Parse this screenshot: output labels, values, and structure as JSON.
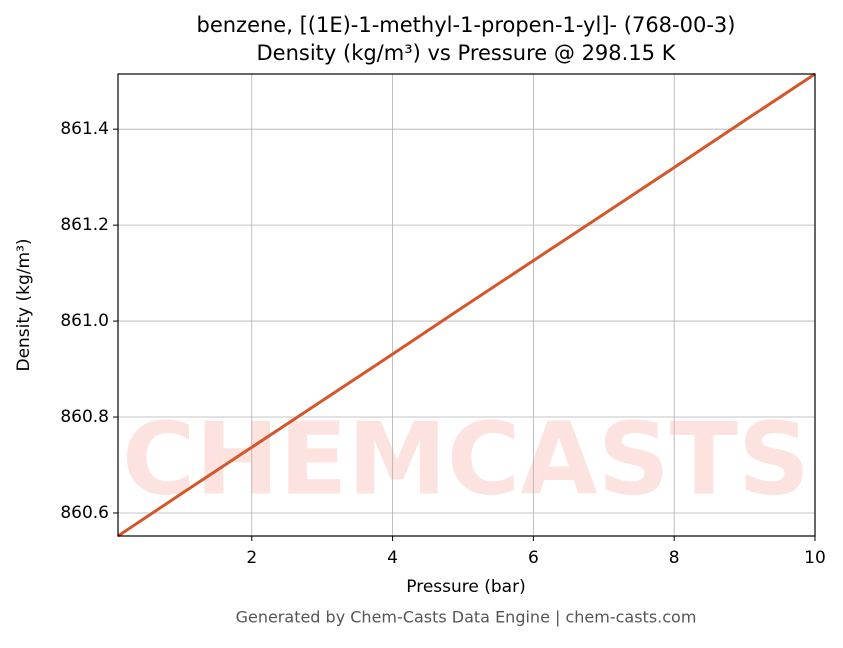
{
  "chart_data": {
    "type": "line",
    "title": "benzene, [(1E)-1-methyl-1-propen-1-yl]- (768-00-3)",
    "subtitle": "Density (kg/m³) vs Pressure @ 298.15 K",
    "x_label": "Pressure (bar)",
    "y_label": "Density (kg/m³)",
    "watermark": "CHEMCASTS",
    "footer": "Generated by Chem-Casts Data Engine | chem-casts.com",
    "x": [
      0.1,
      1,
      2,
      3,
      4,
      5,
      6,
      7,
      8,
      9,
      10
    ],
    "series": [
      {
        "name": "Density",
        "color": "#d4562a",
        "values": [
          860.552,
          860.64,
          860.737,
          860.834,
          860.931,
          861.029,
          861.126,
          861.223,
          861.32,
          861.418,
          861.515
        ]
      }
    ],
    "xlim": [
      0.1,
      10
    ],
    "ylim": [
      860.552,
      861.515
    ],
    "xticks": [
      2,
      4,
      6,
      8,
      10
    ],
    "yticks": [
      860.6,
      860.8,
      {
        "value": 861.0,
        "label": "861.0"
      },
      861.2,
      861.4
    ],
    "grid": true
  }
}
